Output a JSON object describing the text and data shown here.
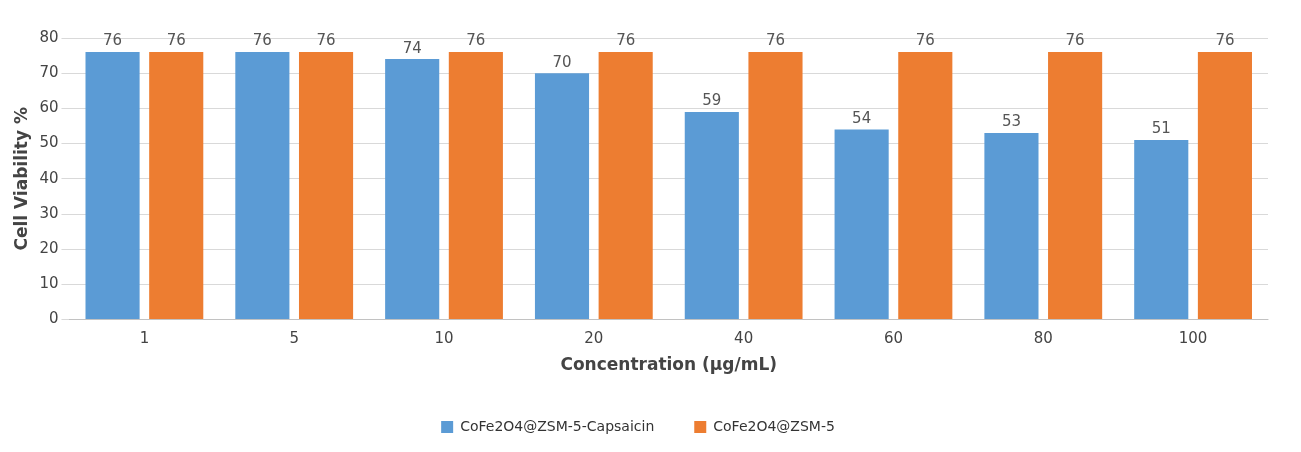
{
  "chart_data": {
    "type": "bar",
    "xlabel": "Concentration (μg/mL)",
    "ylabel": "Cell Viability %",
    "categories": [
      "1",
      "5",
      "10",
      "20",
      "40",
      "60",
      "80",
      "100"
    ],
    "series": [
      {
        "name": "CoFe2O4@ZSM-5-Capsaicin",
        "color": "#5b9bd5",
        "values": [
          76,
          76,
          74,
          70,
          59,
          54,
          53,
          51
        ]
      },
      {
        "name": "CoFe2O4@ZSM-5",
        "color": "#ed7d31",
        "values": [
          76,
          76,
          76,
          76,
          76,
          76,
          76,
          76
        ]
      }
    ],
    "ylim": [
      0,
      80
    ],
    "yticks": [
      0,
      10,
      20,
      30,
      40,
      50,
      60,
      70,
      80
    ],
    "grid": "y",
    "legend": "bottom",
    "data_labels": true
  }
}
